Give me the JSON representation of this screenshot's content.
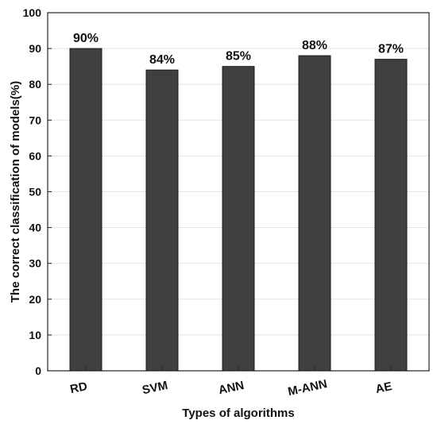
{
  "chart_data": {
    "type": "bar",
    "categories": [
      "RD",
      "SVM",
      "ANN",
      "M-ANN",
      "AE"
    ],
    "values": [
      90,
      84,
      85,
      88,
      87
    ],
    "data_labels": [
      "90%",
      "84%",
      "85%",
      "88%",
      "87%"
    ],
    "xlabel": "Types of algorithms",
    "ylabel": "The correct classification of models(%)",
    "ylim": [
      0,
      100
    ],
    "yticks": [
      0,
      10,
      20,
      30,
      40,
      50,
      60,
      70,
      80,
      90,
      100
    ],
    "grid": true,
    "bar_color": "#3f3f3f"
  }
}
